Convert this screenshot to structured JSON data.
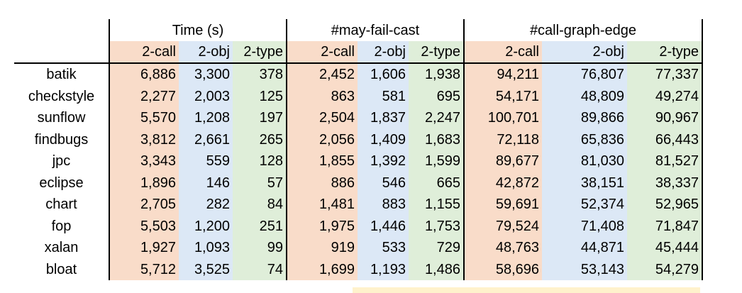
{
  "headers": {
    "groups": [
      "Time (s)",
      "#may-fail-cast",
      "#call-graph-edge"
    ],
    "sub": [
      "2-call",
      "2-obj",
      "2-type"
    ]
  },
  "rows": [
    {
      "name": "batik",
      "time": [
        "6,886",
        "3,300",
        "378"
      ],
      "cast": [
        "2,452",
        "1,606",
        "1,938"
      ],
      "edge": [
        "94,211",
        "76,807",
        "77,337"
      ]
    },
    {
      "name": "checkstyle",
      "time": [
        "2,277",
        "2,003",
        "125"
      ],
      "cast": [
        "863",
        "581",
        "695"
      ],
      "edge": [
        "54,171",
        "48,809",
        "49,274"
      ]
    },
    {
      "name": "sunflow",
      "time": [
        "5,570",
        "1,208",
        "197"
      ],
      "cast": [
        "2,504",
        "1,837",
        "2,247"
      ],
      "edge": [
        "100,701",
        "89,866",
        "90,967"
      ]
    },
    {
      "name": "findbugs",
      "time": [
        "3,812",
        "2,661",
        "265"
      ],
      "cast": [
        "2,056",
        "1,409",
        "1,683"
      ],
      "edge": [
        "72,118",
        "65,836",
        "66,443"
      ]
    },
    {
      "name": "jpc",
      "time": [
        "3,343",
        "559",
        "128"
      ],
      "cast": [
        "1,855",
        "1,392",
        "1,599"
      ],
      "edge": [
        "89,677",
        "81,030",
        "81,527"
      ]
    },
    {
      "name": "eclipse",
      "time": [
        "1,896",
        "146",
        "57"
      ],
      "cast": [
        "886",
        "546",
        "665"
      ],
      "edge": [
        "42,872",
        "38,151",
        "38,337"
      ]
    },
    {
      "name": "chart",
      "time": [
        "2,705",
        "282",
        "84"
      ],
      "cast": [
        "1,481",
        "883",
        "1,155"
      ],
      "edge": [
        "59,691",
        "52,374",
        "52,965"
      ]
    },
    {
      "name": "fop",
      "time": [
        "5,503",
        "1,200",
        "251"
      ],
      "cast": [
        "1,975",
        "1,446",
        "1,753"
      ],
      "edge": [
        "79,524",
        "71,408",
        "71,847"
      ]
    },
    {
      "name": "xalan",
      "time": [
        "1,927",
        "1,093",
        "99"
      ],
      "cast": [
        "919",
        "533",
        "729"
      ],
      "edge": [
        "48,763",
        "44,871",
        "45,444"
      ]
    },
    {
      "name": "bloat",
      "time": [
        "5,712",
        "3,525",
        "74"
      ],
      "cast": [
        "1,699",
        "1,193",
        "1,486"
      ],
      "edge": [
        "58,696",
        "53,143",
        "54,279"
      ]
    }
  ]
}
